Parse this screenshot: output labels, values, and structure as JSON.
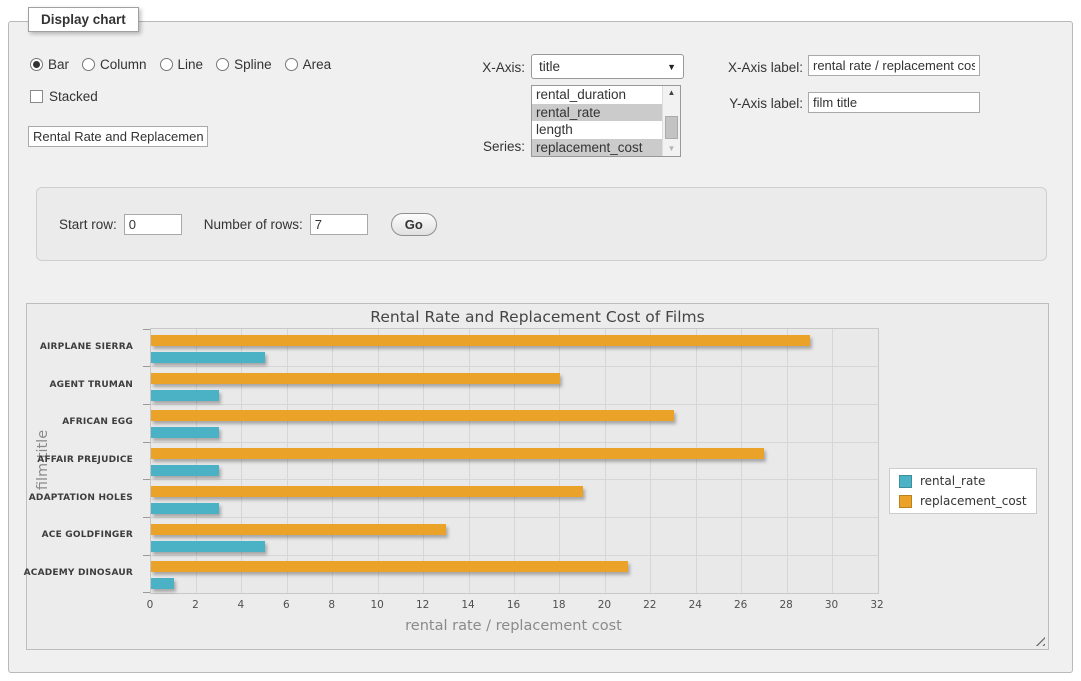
{
  "fieldset": {
    "legend": "Display chart"
  },
  "chart_type_options": [
    {
      "label": "Bar",
      "selected": true
    },
    {
      "label": "Column",
      "selected": false
    },
    {
      "label": "Line",
      "selected": false
    },
    {
      "label": "Spline",
      "selected": false
    },
    {
      "label": "Area",
      "selected": false
    }
  ],
  "stacked": {
    "label": "Stacked",
    "checked": false
  },
  "title_input": {
    "value": "Rental Rate and Replacement Cost of Films"
  },
  "x_axis": {
    "label": "X-Axis:",
    "value": "title"
  },
  "series_select": {
    "label": "Series:",
    "options": [
      {
        "label": "rental_duration",
        "selected": false
      },
      {
        "label": "rental_rate",
        "selected": true
      },
      {
        "label": "length",
        "selected": false
      },
      {
        "label": "replacement_cost",
        "selected": true
      }
    ]
  },
  "x_axis_label_field": {
    "label": "X-Axis label:",
    "value": "rental rate / replacement cost"
  },
  "y_axis_label_field": {
    "label": "Y-Axis label:",
    "value": "film title"
  },
  "rows_panel": {
    "start_row_label": "Start row:",
    "start_row_value": "0",
    "num_rows_label": "Number of rows:",
    "num_rows_value": "7",
    "go_label": "Go"
  },
  "chart_data": {
    "type": "bar",
    "orientation": "horizontal",
    "title": "Rental Rate and Replacement Cost of Films",
    "xlabel": "rental rate / replacement cost",
    "ylabel": "film title",
    "categories": [
      "AIRPLANE SIERRA",
      "AGENT TRUMAN",
      "AFRICAN EGG",
      "AFFAIR PREJUDICE",
      "ADAPTATION HOLES",
      "ACE GOLDFINGER",
      "ACADEMY DINOSAUR"
    ],
    "series": [
      {
        "name": "rental_rate",
        "color": "#4bb2c5",
        "values": [
          5,
          3,
          3,
          3,
          3,
          5,
          1
        ]
      },
      {
        "name": "replacement_cost",
        "color": "#eaa228",
        "values": [
          29,
          18,
          23,
          27,
          19,
          13,
          21
        ]
      }
    ],
    "xlim": [
      0,
      32
    ],
    "xticks": [
      0,
      2,
      4,
      6,
      8,
      10,
      12,
      14,
      16,
      18,
      20,
      22,
      24,
      26,
      28,
      30,
      32
    ],
    "grid": true,
    "legend_position": "right",
    "plot_background": "#e9e9e9"
  }
}
